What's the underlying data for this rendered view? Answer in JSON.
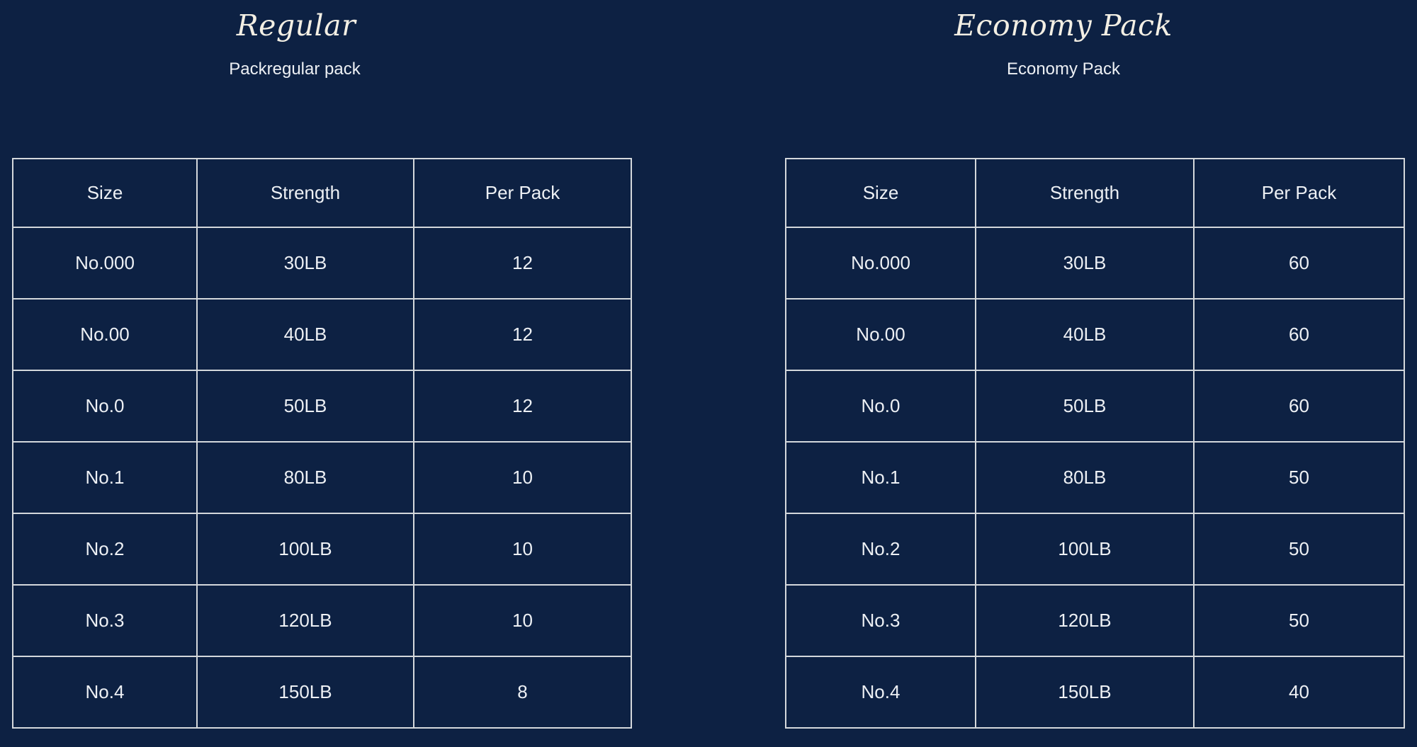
{
  "style": {
    "background": "#0d2143",
    "border_color": "#d4d8dc",
    "text_color": "#edf0f4",
    "title_color": "#f3efe4"
  },
  "chart_data": [
    {
      "type": "table",
      "title": "Regular",
      "subtitle": "Packregular pack",
      "columns": [
        "Size",
        "Strength",
        "Per Pack"
      ],
      "rows": [
        [
          "No.000",
          "30LB",
          "12"
        ],
        [
          "No.00",
          "40LB",
          "12"
        ],
        [
          "No.0",
          "50LB",
          "12"
        ],
        [
          "No.1",
          "80LB",
          "10"
        ],
        [
          "No.2",
          "100LB",
          "10"
        ],
        [
          "No.3",
          "120LB",
          "10"
        ],
        [
          "No.4",
          "150LB",
          "8"
        ]
      ]
    },
    {
      "type": "table",
      "title": "Economy Pack",
      "subtitle": "Economy Pack",
      "columns": [
        "Size",
        "Strength",
        "Per Pack"
      ],
      "rows": [
        [
          "No.000",
          "30LB",
          "60"
        ],
        [
          "No.00",
          "40LB",
          "60"
        ],
        [
          "No.0",
          "50LB",
          "60"
        ],
        [
          "No.1",
          "80LB",
          "50"
        ],
        [
          "No.2",
          "100LB",
          "50"
        ],
        [
          "No.3",
          "120LB",
          "50"
        ],
        [
          "No.4",
          "150LB",
          "40"
        ]
      ]
    }
  ]
}
